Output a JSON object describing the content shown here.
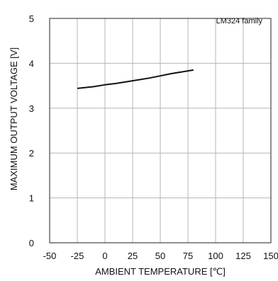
{
  "chart_data": {
    "type": "line",
    "title": "",
    "annotation": "LM324  family",
    "xlabel": "AMBIENT TEMPERATURE [℃]",
    "ylabel": "MAXIMUM OUTPUT VOLTAGE [V]",
    "xlim": [
      -50,
      150
    ],
    "ylim": [
      0,
      5
    ],
    "xticks": [
      "-50",
      "-25",
      "0",
      "25",
      "50",
      "75",
      "100",
      "125",
      "150"
    ],
    "yticks": [
      "0",
      "1",
      "2",
      "3",
      "4",
      "5"
    ],
    "grid": true,
    "series": [
      {
        "x": [
          -25,
          -10,
          0,
          10,
          25,
          40,
          50,
          60,
          80
        ],
        "y": [
          3.44,
          3.48,
          3.52,
          3.55,
          3.61,
          3.67,
          3.72,
          3.77,
          3.85
        ]
      }
    ],
    "colors": {
      "line": "#111111",
      "grid": "#b5b5b5",
      "frame": "#222222"
    }
  }
}
